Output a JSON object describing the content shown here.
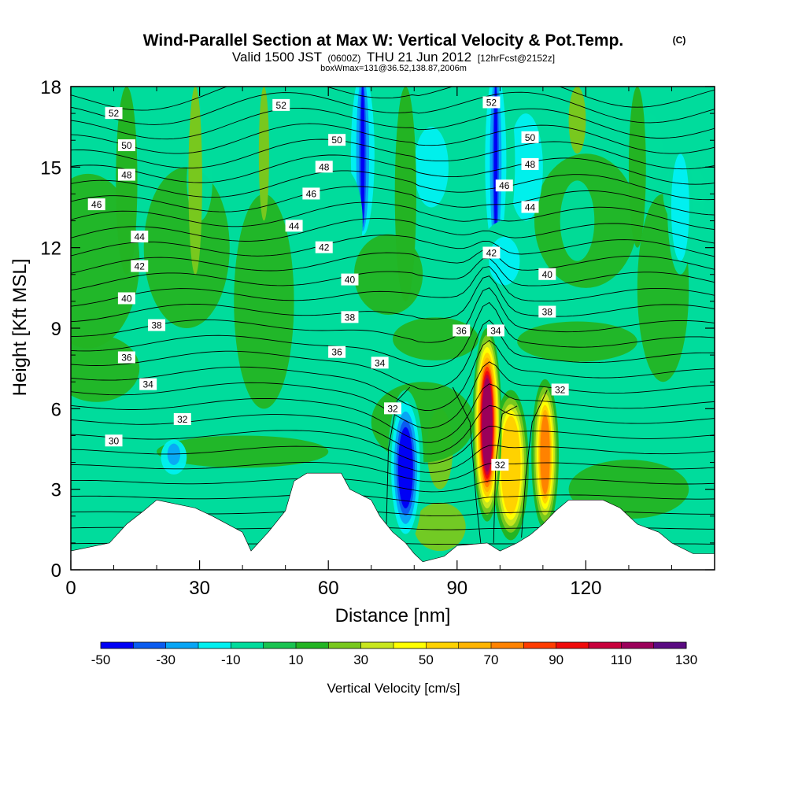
{
  "title": {
    "main": "Wind-Parallel Section at Max W: Vertical Velocity & Pot.Temp.",
    "copyright": "(C)",
    "valid_prefix": "Valid 1500 JST",
    "valid_utc": "(0600Z)",
    "valid_date": "THU 21 Jun 2012",
    "forecast": "[12hrFcst@2152z]",
    "boxline": "boxWmax=131@36.52,138.87,2006m"
  },
  "chart_data": {
    "type": "heatmap",
    "xlabel": "Distance [nm]",
    "ylabel": "Height [Kft MSL]",
    "xlim": [
      0,
      150
    ],
    "ylim": [
      0,
      18
    ],
    "x_ticks": [
      0,
      30,
      60,
      90,
      120
    ],
    "y_ticks": [
      0,
      3,
      6,
      9,
      12,
      15,
      18
    ],
    "colorbar": {
      "label": "Vertical Velocity [cm/s]",
      "range": [
        -50,
        130
      ],
      "step": 10,
      "tick_labels": [
        "-50",
        "-30",
        "-10",
        "10",
        "30",
        "50",
        "70",
        "90",
        "110",
        "130"
      ],
      "colors": [
        "#0000f5",
        "#0a5cf0",
        "#08a5f5",
        "#00f0f0",
        "#00dc9c",
        "#19c350",
        "#23b423",
        "#78c81e",
        "#c8e61e",
        "#ffff00",
        "#ffd200",
        "#ffb400",
        "#ff8200",
        "#ff3c00",
        "#f00a0a",
        "#c8003c",
        "#9b005a",
        "#5a0a82"
      ]
    },
    "terrain_kft": [
      [
        0,
        0.7
      ],
      [
        9,
        1.0
      ],
      [
        13,
        1.7
      ],
      [
        17,
        2.2
      ],
      [
        20,
        2.6
      ],
      [
        29,
        2.3
      ],
      [
        33,
        2.0
      ],
      [
        40,
        1.4
      ],
      [
        42,
        0.7
      ],
      [
        46,
        1.4
      ],
      [
        50,
        2.2
      ],
      [
        52,
        3.3
      ],
      [
        55,
        3.6
      ],
      [
        63,
        3.6
      ],
      [
        65,
        3.0
      ],
      [
        70,
        2.6
      ],
      [
        72,
        2.0
      ],
      [
        75,
        1.4
      ],
      [
        78,
        1.0
      ],
      [
        80,
        0.6
      ],
      [
        82,
        0.3
      ],
      [
        87,
        0.5
      ],
      [
        90,
        0.9
      ],
      [
        97,
        1.0
      ],
      [
        100,
        0.7
      ],
      [
        104,
        1.0
      ],
      [
        107,
        1.3
      ],
      [
        110,
        1.7
      ],
      [
        113,
        2.2
      ],
      [
        116,
        2.6
      ],
      [
        124,
        2.6
      ],
      [
        128,
        2.3
      ],
      [
        132,
        1.7
      ],
      [
        137,
        1.4
      ],
      [
        140,
        1.0
      ],
      [
        145,
        0.6
      ],
      [
        150,
        0.6
      ]
    ],
    "w_features_cm_s": [
      {
        "x": 97,
        "y": 5.5,
        "peak": 131
      },
      {
        "x": 110,
        "y": 4.2,
        "peak": 70
      },
      {
        "x": 102,
        "y": 3.8,
        "peak": 58
      },
      {
        "x": 78,
        "y": 3.8,
        "peak": -45
      },
      {
        "x": 68,
        "y": 16.5,
        "peak": -45
      },
      {
        "x": 98,
        "y": 16.5,
        "peak": -42
      },
      {
        "x": 85,
        "y": 9.0,
        "peak": 22
      }
    ],
    "theta_isentropes_C": [
      30,
      32,
      34,
      36,
      38,
      40,
      42,
      44,
      46,
      48,
      50,
      52
    ],
    "theta_labels": [
      {
        "text": "52",
        "x": 10,
        "y": 17.0
      },
      {
        "text": "52",
        "x": 49,
        "y": 17.3
      },
      {
        "text": "52",
        "x": 98,
        "y": 17.4
      },
      {
        "text": "50",
        "x": 13,
        "y": 15.8
      },
      {
        "text": "50",
        "x": 62,
        "y": 16.0
      },
      {
        "text": "50",
        "x": 107,
        "y": 16.1
      },
      {
        "text": "48",
        "x": 13,
        "y": 14.7
      },
      {
        "text": "48",
        "x": 59,
        "y": 15.0
      },
      {
        "text": "48",
        "x": 107,
        "y": 15.1
      },
      {
        "text": "46",
        "x": 6,
        "y": 13.6
      },
      {
        "text": "46",
        "x": 56,
        "y": 14.0
      },
      {
        "text": "46",
        "x": 101,
        "y": 14.3
      },
      {
        "text": "44",
        "x": 16,
        "y": 12.4
      },
      {
        "text": "44",
        "x": 52,
        "y": 12.8
      },
      {
        "text": "44",
        "x": 107,
        "y": 13.5
      },
      {
        "text": "42",
        "x": 16,
        "y": 11.3
      },
      {
        "text": "42",
        "x": 59,
        "y": 12.0
      },
      {
        "text": "42",
        "x": 98,
        "y": 11.8
      },
      {
        "text": "40",
        "x": 13,
        "y": 10.1
      },
      {
        "text": "40",
        "x": 65,
        "y": 10.8
      },
      {
        "text": "40",
        "x": 111,
        "y": 11.0
      },
      {
        "text": "38",
        "x": 20,
        "y": 9.1
      },
      {
        "text": "38",
        "x": 65,
        "y": 9.4
      },
      {
        "text": "38",
        "x": 111,
        "y": 9.6
      },
      {
        "text": "36",
        "x": 13,
        "y": 7.9
      },
      {
        "text": "36",
        "x": 62,
        "y": 8.1
      },
      {
        "text": "36",
        "x": 91,
        "y": 8.9
      },
      {
        "text": "34",
        "x": 18,
        "y": 6.9
      },
      {
        "text": "34",
        "x": 72,
        "y": 7.7
      },
      {
        "text": "34",
        "x": 99,
        "y": 8.9
      },
      {
        "text": "32",
        "x": 26,
        "y": 5.6
      },
      {
        "text": "32",
        "x": 75,
        "y": 6.0
      },
      {
        "text": "32",
        "x": 114,
        "y": 6.7
      },
      {
        "text": "32",
        "x": 100,
        "y": 3.9
      },
      {
        "text": "30",
        "x": 10,
        "y": 4.8
      }
    ]
  }
}
